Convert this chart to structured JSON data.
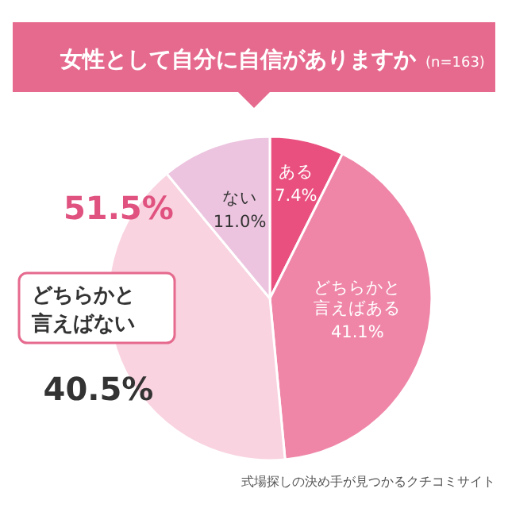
{
  "chart_data": {
    "type": "pie",
    "title": "女性として自分に自信がありますか",
    "subtitle": "(n=163)",
    "categories": [
      "ある",
      "どちらかと言えばある",
      "どちらかと言えばない",
      "ない"
    ],
    "values": [
      7.4,
      41.1,
      40.5,
      11.0
    ],
    "colors": [
      "#e9507f",
      "#ef86a8",
      "#f9d3df",
      "#ecc4df"
    ],
    "value_labels": [
      "7.4%",
      "41.1%",
      "40.5%",
      "11.0%"
    ],
    "annotations": [
      "51.5%",
      "式場探しの決め手が見つかるクチコミサイト"
    ]
  }
}
